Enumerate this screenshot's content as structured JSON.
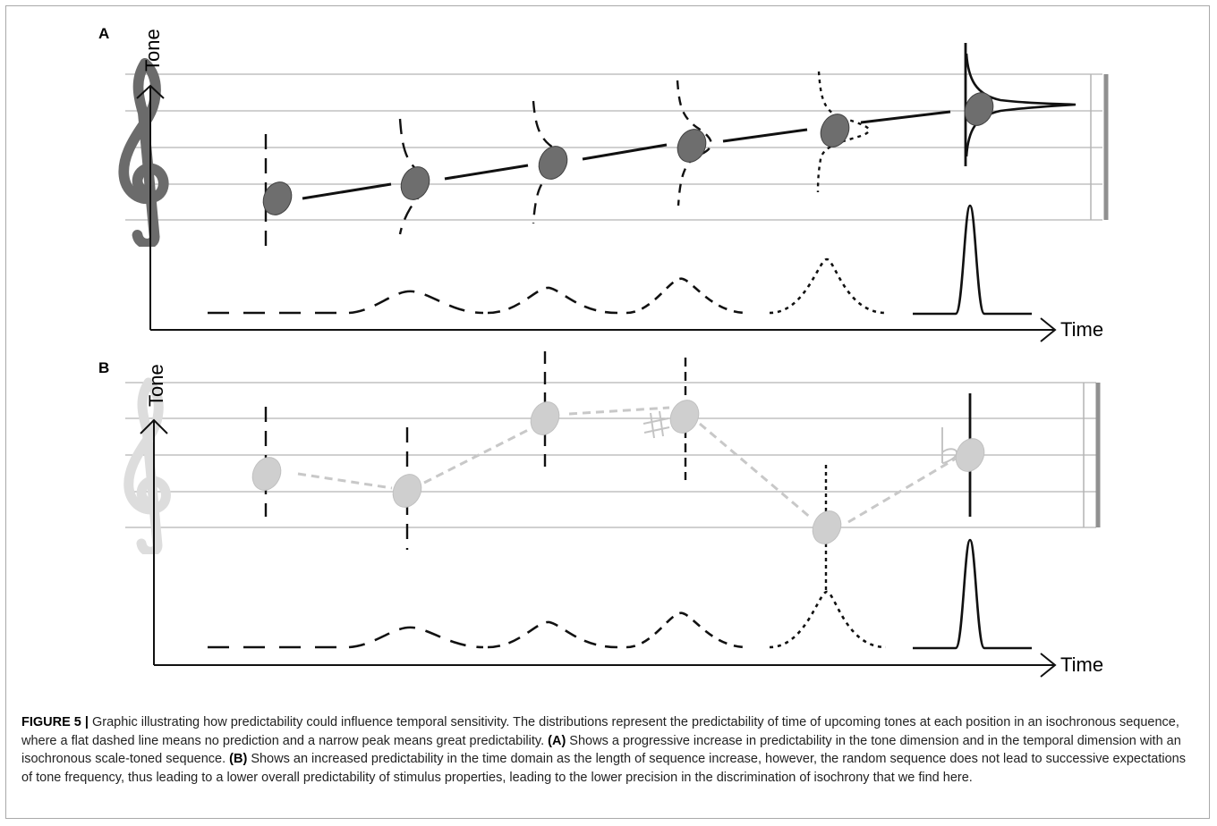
{
  "panels": [
    {
      "label": "A",
      "y_axis_label": "Tone",
      "x_axis_label": "Time",
      "sequence": "scale-toned"
    },
    {
      "label": "B",
      "y_axis_label": "Tone",
      "x_axis_label": "Time",
      "sequence": "random",
      "accidentals": [
        {
          "name": "sharp",
          "glyph": "♯"
        },
        {
          "name": "flat",
          "glyph": "♭"
        }
      ]
    }
  ],
  "colors": {
    "panel_a_note": "#6e6e6e",
    "panel_b_note": "#cfcfcf",
    "panel_a_clef": "#6b6b6b",
    "panel_b_clef": "#dddddd",
    "staff_line": "#b4b4b4",
    "curve": "#111111"
  },
  "caption": {
    "figure_label": "FIGURE 5 |",
    "intro": " Graphic illustrating how predictability could influence temporal sensitivity. The distributions represent the predictability of time of upcoming tones at each position in an isochronous sequence, where a flat dashed line means no prediction and a narrow peak means great predictability. ",
    "a_ref": "(A)",
    "a_text": " Shows a progressive increase in predictability in the tone dimension and in the temporal dimension with an isochronous scale-toned sequence. ",
    "b_ref": "(B)",
    "b_text": " Shows an increased predictability in the time domain as the length of sequence increase, however, the random sequence does not lead to successive expectations of tone frequency, thus leading to a lower overall predictability of stimulus properties, leading to the lower precision in the discrimination of isochrony that we find here."
  }
}
